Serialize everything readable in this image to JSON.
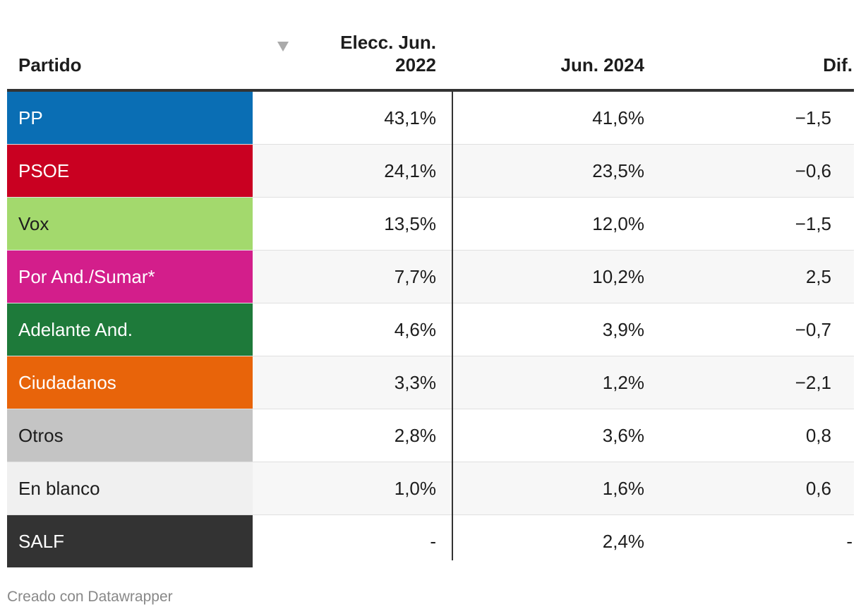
{
  "chart_data": {
    "type": "table",
    "columns": [
      "Partido",
      "Elecc. Jun. 2022",
      "Jun. 2024",
      "Dif."
    ],
    "header": {
      "party": "Partido",
      "col2022_line1": "Elecc. Jun.",
      "col2022_line2": "2022",
      "col2024": "Jun. 2024",
      "dif": "Dif."
    },
    "rows": [
      {
        "party": "PP",
        "v2022": "43,1%",
        "v2024": "41,6%",
        "dif": "−1,5",
        "color": "#0a6eb4",
        "text_color": "#ffffff"
      },
      {
        "party": "PSOE",
        "v2022": "24,1%",
        "v2024": "23,5%",
        "dif": "−0,6",
        "color": "#c90021",
        "text_color": "#ffffff"
      },
      {
        "party": "Vox",
        "v2022": "13,5%",
        "v2024": "12,0%",
        "dif": "−1,5",
        "color": "#a3d96d",
        "text_color": "#1d1d1d"
      },
      {
        "party": "Por And./Sumar*",
        "v2022": "7,7%",
        "v2024": "10,2%",
        "dif": "2,5",
        "color": "#d31e8b",
        "text_color": "#ffffff"
      },
      {
        "party": "Adelante And.",
        "v2022": "4,6%",
        "v2024": "3,9%",
        "dif": "−0,7",
        "color": "#1e7a3a",
        "text_color": "#ffffff"
      },
      {
        "party": "Ciudadanos",
        "v2022": "3,3%",
        "v2024": "1,2%",
        "dif": "−2,1",
        "color": "#e8640a",
        "text_color": "#ffffff"
      },
      {
        "party": "Otros",
        "v2022": "2,8%",
        "v2024": "3,6%",
        "dif": "0,8",
        "color": "#c4c4c4",
        "text_color": "#1d1d1d"
      },
      {
        "party": "En blanco",
        "v2022": "1,0%",
        "v2024": "1,6%",
        "dif": "0,6",
        "color": "#f0f0f0",
        "text_color": "#1d1d1d"
      },
      {
        "party": "SALF",
        "v2022": "-",
        "v2024": "2,4%",
        "dif": "-",
        "color": "#333333",
        "text_color": "#ffffff"
      }
    ]
  },
  "footer": {
    "credit": "Creado con Datawrapper"
  }
}
